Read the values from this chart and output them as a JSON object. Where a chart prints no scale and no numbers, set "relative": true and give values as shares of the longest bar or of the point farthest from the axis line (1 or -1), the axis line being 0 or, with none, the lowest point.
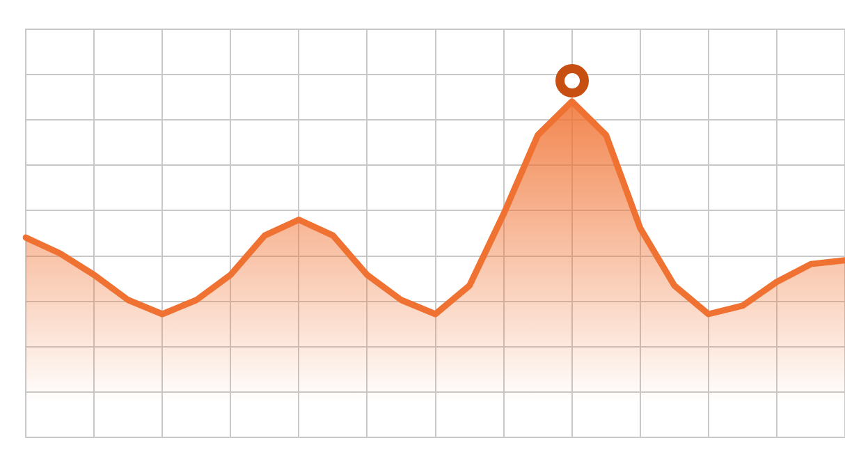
{
  "chart_data": {
    "type": "area",
    "relative": true,
    "grid": true,
    "categories": [
      null,
      null,
      null,
      null,
      null,
      null,
      null,
      null,
      null,
      null,
      null,
      null,
      null,
      null,
      null,
      null,
      null,
      null,
      null,
      null,
      null,
      null,
      null,
      null,
      null
    ],
    "series": [
      {
        "color": "#f07232",
        "values": [
          0.595,
          0.548,
          0.484,
          0.409,
          0.367,
          0.409,
          0.484,
          0.601,
          0.648,
          0.601,
          0.484,
          0.409,
          0.367,
          0.452,
          0.665,
          0.9,
          1,
          0.9,
          0.623,
          0.452,
          0.367,
          0.392,
          0.463,
          0.516,
          0.527
        ]
      }
    ]
  }
}
